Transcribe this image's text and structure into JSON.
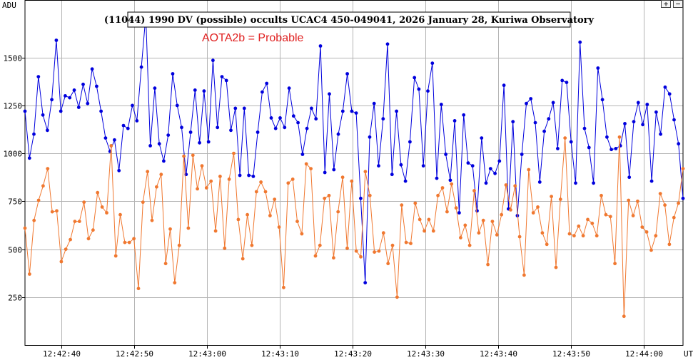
{
  "chart_data": {
    "type": "line",
    "title": "(11044) 1990 DV (possible) occults UCAC4 450-049041, 2026 January 28, Kuriwa Observatory",
    "annotation": "AOTA2b = Probable",
    "ylabel": "ADU",
    "xlabel": "UT",
    "ylim": [
      0,
      1800
    ],
    "yticks": [
      250,
      500,
      750,
      1000,
      1250,
      1500
    ],
    "xticks": [
      "12:42:40",
      "12:42:50",
      "12:43:00",
      "12:43:10",
      "12:43:20",
      "12:43:30",
      "12:43:40",
      "12:43:50",
      "12:44:00"
    ],
    "x_start": "12:42:35.0",
    "x_end": "12:44:05.4",
    "grid": true,
    "colors": {
      "target": "#0000dd",
      "comparison": "#f07830",
      "annotation": "#e02020",
      "grid": "#b4b4b4"
    },
    "series": [
      {
        "key": "target",
        "values": [
          1220,
          975,
          1100,
          1400,
          1200,
          1120,
          1280,
          1590,
          1220,
          1300,
          1290,
          1330,
          1240,
          1360,
          1260,
          1440,
          1350,
          1220,
          1080,
          1010,
          1070,
          910,
          1145,
          1130,
          1250,
          1170,
          1450,
          1720,
          1040,
          1340,
          1050,
          960,
          1095,
          1415,
          1250,
          1135,
          890,
          1110,
          1330,
          1055,
          1325,
          1060,
          1485,
          1135,
          1400,
          1380,
          1120,
          1235,
          885,
          1235,
          885,
          880,
          1110,
          1320,
          1365,
          1185,
          1130,
          1185,
          1135,
          1340,
          1195,
          1160,
          995,
          1130,
          1235,
          1180,
          1560,
          900,
          1310,
          915,
          1100,
          1220,
          1415,
          1220,
          1210,
          765,
          325,
          1085,
          1260,
          935,
          1180,
          1570,
          890,
          1220,
          940,
          855,
          1060,
          1395,
          1335,
          935,
          1325,
          1470,
          870,
          1255,
          995,
          860,
          1170,
          690,
          1200,
          950,
          935,
          700,
          1080,
          845,
          920,
          895,
          960,
          1355,
          710,
          1165,
          675,
          995,
          1260,
          1285,
          1160,
          850,
          1115,
          1180,
          1265,
          1025,
          1380,
          1370,
          1060,
          845,
          1580,
          1130,
          1030,
          845,
          1445,
          1280,
          1085,
          1020,
          1025,
          1040,
          1155,
          875,
          1165,
          1265,
          1150,
          1255,
          855,
          1215,
          1100,
          1345,
          1310,
          1175,
          1050,
          765
        ]
      },
      {
        "key": "comparison",
        "values": [
          610,
          370,
          650,
          755,
          830,
          920,
          695,
          700,
          435,
          500,
          550,
          645,
          645,
          745,
          555,
          600,
          795,
          720,
          690,
          1040,
          465,
          680,
          535,
          535,
          555,
          295,
          745,
          905,
          650,
          825,
          890,
          425,
          605,
          325,
          520,
          985,
          610,
          990,
          815,
          935,
          820,
          855,
          595,
          880,
          505,
          865,
          1000,
          655,
          450,
          680,
          520,
          800,
          850,
          800,
          675,
          760,
          615,
          300,
          845,
          865,
          645,
          580,
          945,
          920,
          465,
          520,
          765,
          780,
          455,
          695,
          875,
          505,
          855,
          490,
          460,
          905,
          780,
          485,
          490,
          585,
          425,
          520,
          250,
          730,
          535,
          530,
          740,
          655,
          595,
          655,
          595,
          780,
          820,
          695,
          840,
          715,
          560,
          625,
          520,
          805,
          585,
          650,
          420,
          645,
          575,
          680,
          835,
          705,
          830,
          565,
          365,
          915,
          690,
          720,
          585,
          525,
          775,
          405,
          760,
          1080,
          580,
          570,
          620,
          570,
          655,
          635,
          570,
          780,
          680,
          670,
          425,
          1085,
          150,
          755,
          675,
          750,
          615,
          590,
          495,
          570,
          790,
          730,
          525,
          665,
          740,
          920
        ]
      }
    ]
  },
  "controls": {
    "zoom_in": "+",
    "zoom_out": "−"
  }
}
